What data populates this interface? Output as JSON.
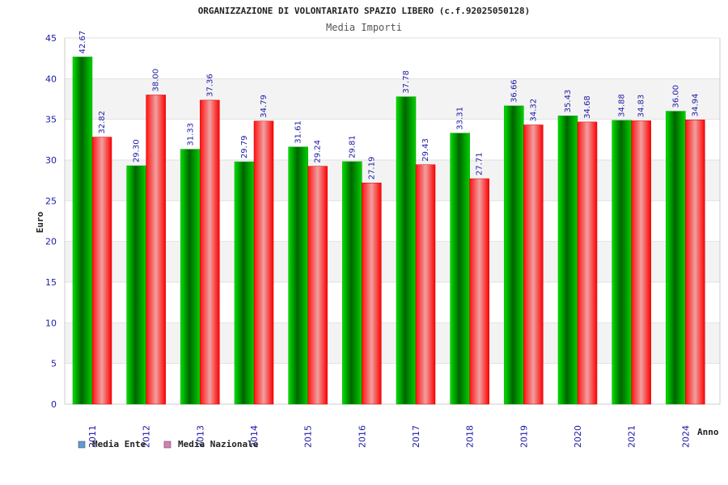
{
  "chart_data": {
    "type": "bar",
    "title": "ORGANIZZAZIONE DI VOLONTARIATO SPAZIO LIBERO (c.f.92025050128)",
    "subtitle": "Media Importi",
    "xlabel": "Anno",
    "ylabel": "Euro",
    "ylim": [
      0,
      45
    ],
    "yticks": [
      "0",
      "5",
      "10",
      "15",
      "20",
      "25",
      "30",
      "35",
      "40",
      "45"
    ],
    "categories": [
      "2011",
      "2012",
      "2013",
      "2014",
      "2015",
      "2016",
      "2017",
      "2018",
      "2019",
      "2020",
      "2021",
      "2024"
    ],
    "series": [
      {
        "name": "Media Ente",
        "values": [
          42.67,
          29.3,
          31.33,
          29.79,
          31.61,
          29.81,
          37.78,
          33.31,
          36.66,
          35.43,
          34.88,
          36.0
        ],
        "labels": [
          "42.67",
          "29.30",
          "31.33",
          "29.79",
          "31.61",
          "29.81",
          "37.78",
          "33.31",
          "36.66",
          "35.43",
          "34.88",
          "36.00"
        ],
        "color": "#00b000",
        "legend_color": "#5b9bd5"
      },
      {
        "name": "Media Nazionale",
        "values": [
          32.82,
          38.0,
          37.36,
          34.79,
          29.24,
          27.19,
          29.43,
          27.71,
          34.32,
          34.68,
          34.83,
          34.94
        ],
        "labels": [
          "32.82",
          "38.00",
          "37.36",
          "34.79",
          "29.24",
          "27.19",
          "29.43",
          "27.71",
          "34.32",
          "34.68",
          "34.83",
          "34.94"
        ],
        "color": "#ee1111",
        "legend_color": "#d77fb3"
      }
    ],
    "legend_position": "bottom-left",
    "grid": true
  }
}
